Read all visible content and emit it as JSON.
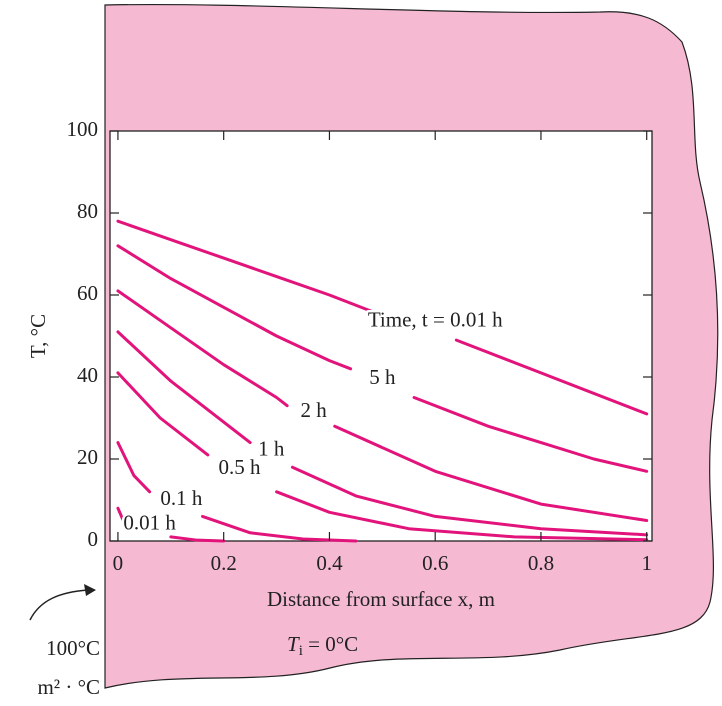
{
  "chart_data": {
    "type": "line",
    "x_label": "Distance from surface x, m",
    "y_label": "T, °C",
    "xlim": [
      -0.015,
      1.01
    ],
    "ylim": [
      0,
      100
    ],
    "xticks": [
      0,
      0.2,
      0.4,
      0.6,
      0.8,
      1
    ],
    "yticks": [
      0,
      20,
      40,
      60,
      80,
      100
    ],
    "color": "#e2147c",
    "annotations": {
      "boundary_temp": "100°C",
      "boundary_unit": "m² · °C",
      "initial_symbol": "T",
      "initial_sub": "i",
      "initial_value": " = 0°C"
    },
    "series": [
      {
        "name": "Time, t = 0.01 h",
        "x": [
          0,
          0.1,
          0.2,
          0.3,
          0.4,
          0.48,
          0.6,
          0.64,
          0.8,
          1
        ],
        "values": [
          78,
          73.5,
          69,
          64.5,
          60,
          56,
          null,
          49,
          41,
          31
        ]
      },
      {
        "name": "5 h",
        "x": [
          0,
          0.1,
          0.2,
          0.3,
          0.4,
          0.44,
          0.5,
          0.56,
          0.7,
          0.8,
          0.9,
          1
        ],
        "values": [
          72,
          64,
          57,
          50,
          44,
          42,
          null,
          35,
          28,
          24,
          20,
          17
        ]
      },
      {
        "name": "2 h",
        "x": [
          0,
          0.1,
          0.2,
          0.3,
          0.32,
          0.37,
          0.41,
          0.6,
          0.8,
          1
        ],
        "values": [
          61,
          52,
          43,
          35,
          33,
          null,
          28,
          17,
          9,
          5
        ]
      },
      {
        "name": "1 h",
        "x": [
          0,
          0.1,
          0.2,
          0.25,
          0.29,
          0.33,
          0.45,
          0.6,
          0.8,
          1
        ],
        "values": [
          51,
          39,
          29,
          24,
          null,
          18,
          11,
          6,
          3,
          1.5
        ]
      },
      {
        "name": "0.5 h",
        "x": [
          0,
          0.08,
          0.17,
          0.23,
          0.3,
          0.4,
          0.55,
          0.75,
          1
        ],
        "values": [
          41,
          30,
          21,
          null,
          12,
          7,
          3,
          1,
          0.3
        ]
      },
      {
        "name": "0.1 h",
        "x": [
          0,
          0.03,
          0.06,
          0.12,
          0.16,
          0.25,
          0.35,
          0.45
        ],
        "values": [
          24,
          16,
          12,
          null,
          6,
          2,
          0.5,
          0
        ]
      },
      {
        "name": "0.01 h",
        "x": [
          0,
          0.01,
          0.06,
          0.1,
          0.15,
          0.2
        ],
        "values": [
          8,
          5,
          null,
          1,
          0.2,
          0
        ]
      }
    ]
  }
}
